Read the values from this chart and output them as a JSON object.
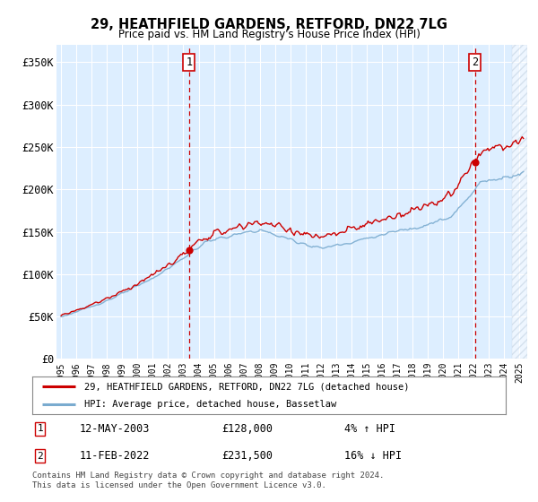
{
  "title": "29, HEATHFIELD GARDENS, RETFORD, DN22 7LG",
  "subtitle": "Price paid vs. HM Land Registry's House Price Index (HPI)",
  "sale1_date_t": 2003.37,
  "sale1_price": 128000,
  "sale1_display_date": "12-MAY-2003",
  "sale1_pct": "4% ↑ HPI",
  "sale2_date_t": 2022.08,
  "sale2_price": 231500,
  "sale2_display_date": "11-FEB-2022",
  "sale2_pct": "16% ↓ HPI",
  "legend_line1": "29, HEATHFIELD GARDENS, RETFORD, DN22 7LG (detached house)",
  "legend_line2": "HPI: Average price, detached house, Bassetlaw",
  "footer1": "Contains HM Land Registry data © Crown copyright and database right 2024.",
  "footer2": "This data is licensed under the Open Government Licence v3.0.",
  "line_color_red": "#cc0000",
  "line_color_blue": "#7aabcf",
  "bg_color": "#ffffff",
  "plot_bg": "#ddeeff",
  "grid_color": "#ffffff",
  "ylabel_ticks": [
    "£0",
    "£50K",
    "£100K",
    "£150K",
    "£200K",
    "£250K",
    "£300K",
    "£350K"
  ],
  "ytick_values": [
    0,
    50000,
    100000,
    150000,
    200000,
    250000,
    300000,
    350000
  ],
  "ylim": [
    0,
    370000
  ],
  "xlim_start": 1994.7,
  "xlim_end": 2025.5,
  "hatch_color": "#aabbcc"
}
